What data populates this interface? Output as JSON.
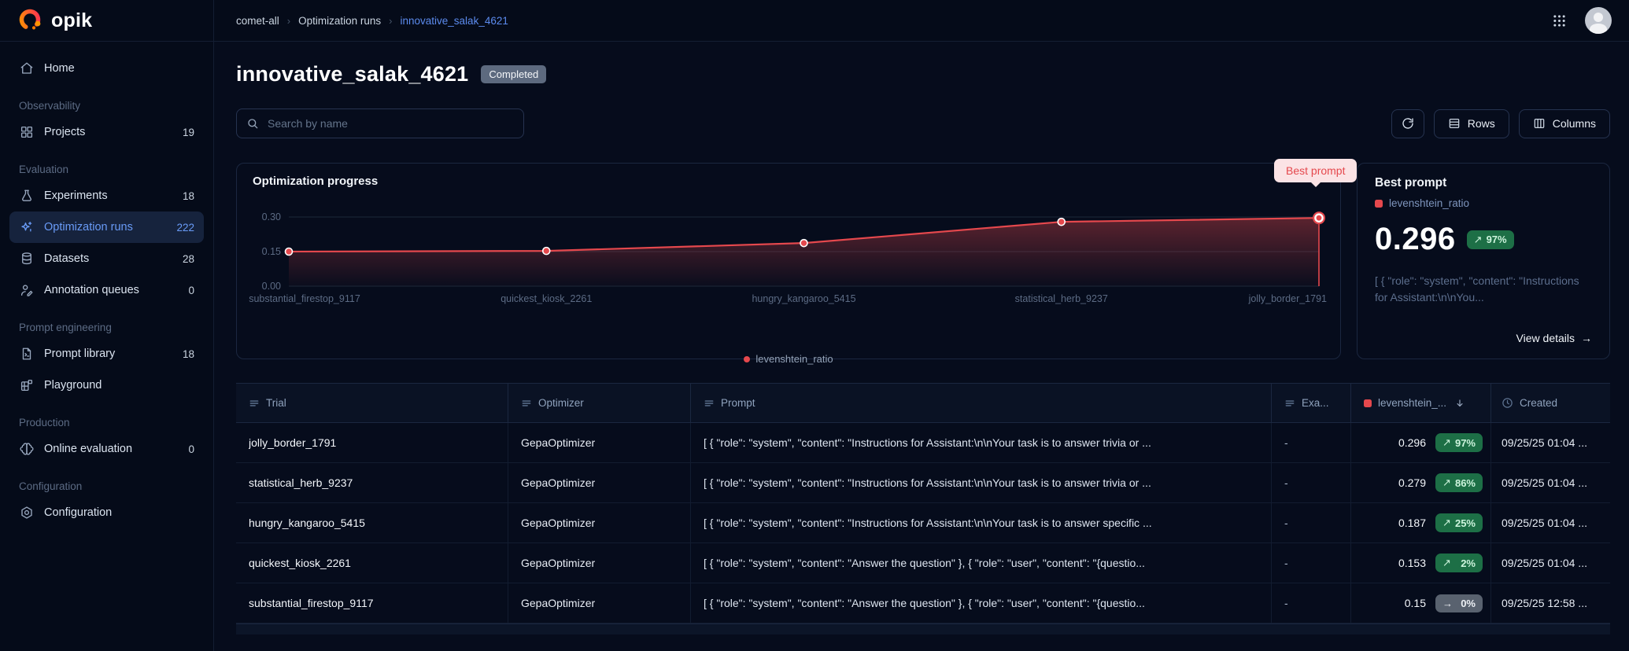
{
  "brand": {
    "name": "opik"
  },
  "topbar": {
    "breadcrumbs": [
      "comet-all",
      "Optimization runs",
      "innovative_salak_4621"
    ]
  },
  "sidebar": {
    "home": {
      "label": "Home"
    },
    "sections": [
      {
        "label": "Observability",
        "items": [
          {
            "label": "Projects",
            "count": "19"
          }
        ]
      },
      {
        "label": "Evaluation",
        "items": [
          {
            "label": "Experiments",
            "count": "18"
          },
          {
            "label": "Optimization runs",
            "count": "222"
          },
          {
            "label": "Datasets",
            "count": "28"
          },
          {
            "label": "Annotation queues",
            "count": "0"
          }
        ]
      },
      {
        "label": "Prompt engineering",
        "items": [
          {
            "label": "Prompt library",
            "count": "18"
          },
          {
            "label": "Playground"
          }
        ]
      },
      {
        "label": "Production",
        "items": [
          {
            "label": "Online evaluation",
            "count": "0"
          }
        ]
      },
      {
        "label": "Configuration",
        "items": [
          {
            "label": "Configuration"
          }
        ]
      }
    ]
  },
  "page": {
    "title": "innovative_salak_4621",
    "status_badge": "Completed",
    "search_placeholder": "Search by name",
    "rows_button": "Rows",
    "columns_button": "Columns"
  },
  "chart_data": {
    "type": "line",
    "title": "Optimization progress",
    "x": [
      "substantial_firestop_9117",
      "quickest_kiosk_2261",
      "hungry_kangaroo_5415",
      "statistical_herb_9237",
      "jolly_border_1791"
    ],
    "series": [
      {
        "name": "levenshtein_ratio",
        "color": "#e5484d",
        "values": [
          0.15,
          0.153,
          0.187,
          0.279,
          0.296
        ]
      }
    ],
    "ylim": [
      0,
      0.3
    ],
    "yticks": [
      {
        "label": "0.30",
        "value": 0.3
      },
      {
        "label": "0.15",
        "value": 0.15
      },
      {
        "label": "0.00",
        "value": 0.0
      }
    ],
    "legend": [
      "levenshtein_ratio"
    ],
    "legend_position": "bottom",
    "grid": true,
    "annotation": {
      "label": "Best prompt",
      "point_index": 4
    }
  },
  "best_prompt": {
    "title": "Best prompt",
    "metric": "levenshtein_ratio",
    "value": "0.296",
    "trend_icon": "↗",
    "trend": "97%",
    "prompt_preview": "[ { \"role\": \"system\", \"content\": \"Instructions for Assistant:\\n\\nYou...",
    "link": "View details",
    "link_icon": "→"
  },
  "table": {
    "columns": {
      "trial": "Trial",
      "optimizer": "Optimizer",
      "prompt": "Prompt",
      "examples": "Exa...",
      "score": "levenshtein_...",
      "created": "Created"
    },
    "rows": [
      {
        "trial": "jolly_border_1791",
        "optimizer": "GepaOptimizer",
        "prompt": "[ { \"role\": \"system\", \"content\": \"Instructions for Assistant:\\n\\nYour task is to answer trivia or ...",
        "examples": "-",
        "score": "0.296",
        "trend_icon": "↗",
        "trend": "97%",
        "trend_type": "up",
        "created": "09/25/25 01:04 ..."
      },
      {
        "trial": "statistical_herb_9237",
        "optimizer": "GepaOptimizer",
        "prompt": "[ { \"role\": \"system\", \"content\": \"Instructions for Assistant:\\n\\nYour task is to answer trivia or ...",
        "examples": "-",
        "score": "0.279",
        "trend_icon": "↗",
        "trend": "86%",
        "trend_type": "up",
        "created": "09/25/25 01:04 ..."
      },
      {
        "trial": "hungry_kangaroo_5415",
        "optimizer": "GepaOptimizer",
        "prompt": "[ { \"role\": \"system\", \"content\": \"Instructions for Assistant:\\n\\nYour task is to answer specific ...",
        "examples": "-",
        "score": "0.187",
        "trend_icon": "↗",
        "trend": "25%",
        "trend_type": "up",
        "created": "09/25/25 01:04 ..."
      },
      {
        "trial": "quickest_kiosk_2261",
        "optimizer": "GepaOptimizer",
        "prompt": "[ { \"role\": \"system\", \"content\": \"Answer the question\" }, { \"role\": \"user\", \"content\": \"{questio...",
        "examples": "-",
        "score": "0.153",
        "trend_icon": "↗",
        "trend": "2%",
        "trend_type": "up",
        "created": "09/25/25 01:04 ..."
      },
      {
        "trial": "substantial_firestop_9117",
        "optimizer": "GepaOptimizer",
        "prompt": "[ { \"role\": \"system\", \"content\": \"Answer the question\" }, { \"role\": \"user\", \"content\": \"{questio...",
        "examples": "-",
        "score": "0.15",
        "trend_icon": "→",
        "trend": "0%",
        "trend_type": "flat",
        "created": "09/25/25 12:58 ..."
      }
    ]
  }
}
